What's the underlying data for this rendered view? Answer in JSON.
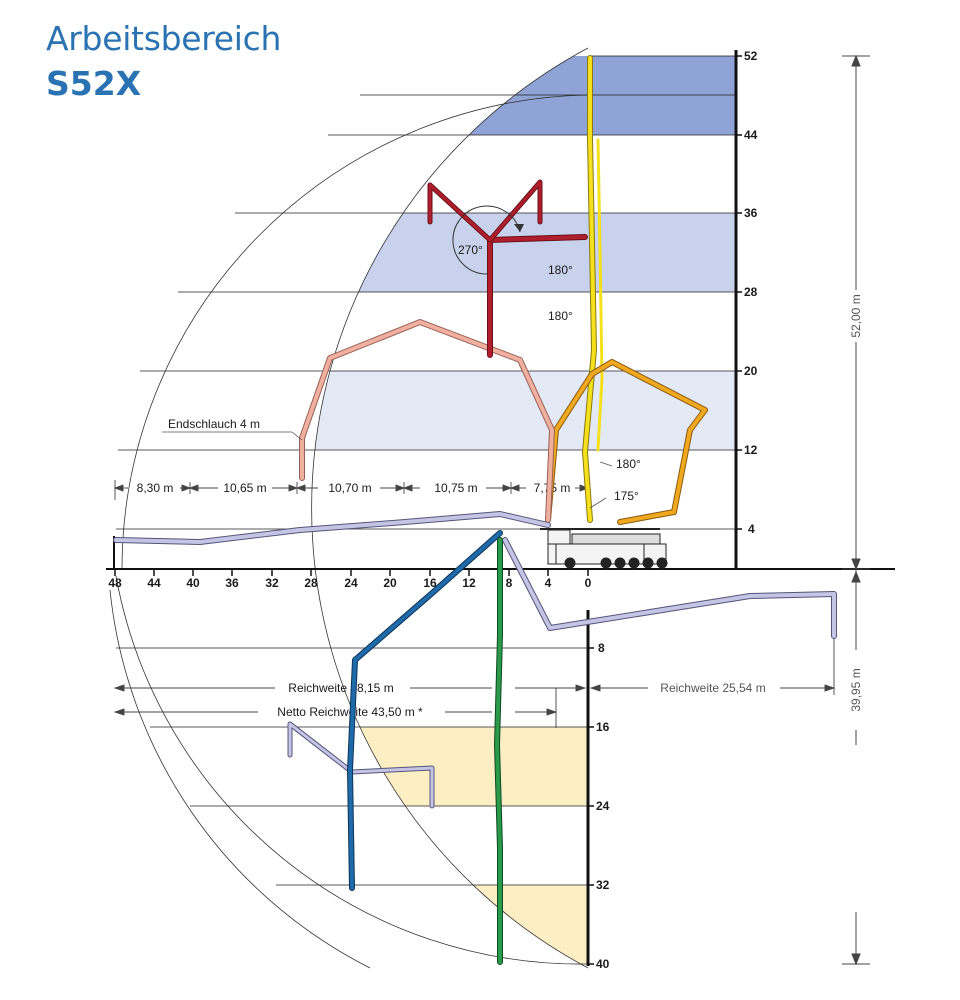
{
  "title": {
    "line1": "Arbeitsbereich",
    "line2": "S52X"
  },
  "colors": {
    "title": "#2a73b3",
    "band_dark": "#8fa3d6",
    "band_mid": "#c8d2ec",
    "band_light": "#e4e9f6",
    "band_underground": "#fdeec4",
    "boom_yellow": "#f4e01c",
    "boom_orange": "#f0a81e",
    "boom_salmon": "#f0b0a0",
    "boom_red": "#b01e2e",
    "boom_lavender": "#c4c4e4",
    "boom_blue": "#1f6aa8",
    "boom_green": "#2a9a4a"
  },
  "axes": {
    "horizontal_ticks": [
      "48",
      "44",
      "40",
      "36",
      "32",
      "28",
      "24",
      "20",
      "16",
      "12",
      "8",
      "4",
      "0"
    ],
    "vertical_ticks_up": [
      "52",
      "44",
      "36",
      "28",
      "20",
      "12",
      "4"
    ],
    "vertical_ticks_down": [
      "8",
      "16",
      "24",
      "32",
      "40"
    ]
  },
  "dimensions": {
    "segments": [
      "8,30 m",
      "10,65 m",
      "10,70 m",
      "10,75 m",
      "7,75 m"
    ],
    "reach_total": "Reichweite 48,15 m",
    "reach_net": "Netto Reichweite 43,50 m *",
    "reach_below": "Reichweite 25,54 m",
    "height": "52,00 m",
    "depth": "39,95 m"
  },
  "annotations": {
    "end_hose": "Endschlauch 4 m",
    "angle_270": "270°",
    "angle_180_a": "180°",
    "angle_180_b": "180°",
    "angle_180_c": "180°",
    "angle_175": "175°"
  }
}
